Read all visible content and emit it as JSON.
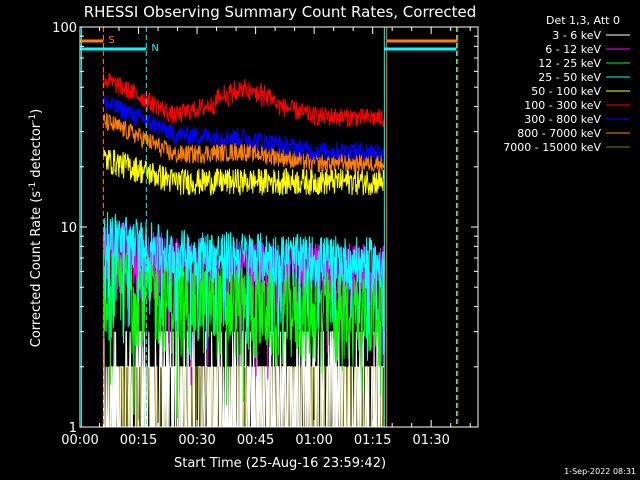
{
  "chart_data": {
    "type": "line",
    "title": "RHESSI Observing Summary Count Rates, Corrected",
    "xlabel": "Start Time (25-Aug-16 23:59:42)",
    "ylabel_main": "Corrected Count Rate (s",
    "ylabel_sup1": "-1",
    "ylabel_mid": " detector",
    "ylabel_sup2": "-1",
    "ylabel_end": ")",
    "y_scale": "log",
    "ylim": [
      1,
      100
    ],
    "xlim_minutes": [
      0,
      102
    ],
    "x_ticks": [
      {
        "value": 0,
        "label": "00:00"
      },
      {
        "value": 15,
        "label": "00:15"
      },
      {
        "value": 30,
        "label": "00:30"
      },
      {
        "value": 45,
        "label": "00:45"
      },
      {
        "value": 60,
        "label": "01:00"
      },
      {
        "value": 75,
        "label": "01:15"
      },
      {
        "value": 90,
        "label": "01:30"
      }
    ],
    "y_ticks": [
      {
        "value": 1,
        "label": "1"
      },
      {
        "value": 10,
        "label": "10"
      },
      {
        "value": 100,
        "label": "100"
      }
    ],
    "data_span_minutes": [
      6,
      78
    ],
    "legend_header": "Det 1,3, Att 0",
    "series": [
      {
        "name": "3 - 6 keV",
        "color": "#ffffff",
        "level": [
          2.0,
          2.0,
          2.0,
          2.0,
          2.0
        ],
        "noise": 0.35
      },
      {
        "name": "6 - 12 keV",
        "color": "#ff00ff",
        "level": [
          8.0,
          6.5,
          6.0,
          6.0,
          6.0
        ],
        "noise": 0.2
      },
      {
        "name": "12 - 25 keV",
        "color": "#00ff00",
        "level": [
          5.5,
          4.5,
          4.2,
          4.0,
          4.0
        ],
        "noise": 0.25
      },
      {
        "name": "25 - 50 keV",
        "color": "#00ffff",
        "level": [
          9.5,
          7.5,
          7.3,
          7.0,
          6.8
        ],
        "noise": 0.15
      },
      {
        "name": "50 - 100 keV",
        "color": "#ffff00",
        "level": [
          22,
          17,
          17,
          17,
          17
        ],
        "noise": 0.07
      },
      {
        "name": "100 - 300 keV",
        "color": "#ff0000",
        "level": [
          55,
          36,
          45,
          36,
          35
        ],
        "noise": 0.05
      },
      {
        "name": "300 - 800 keV",
        "color": "#0000ff",
        "level": [
          42,
          29,
          28,
          24,
          24
        ],
        "noise": 0.05
      },
      {
        "name": "800 - 7000 keV",
        "color": "#ff8000",
        "level": [
          34,
          23,
          24,
          21,
          21
        ],
        "noise": 0.05
      },
      {
        "name": "7000 - 15000 keV",
        "color": "#808000",
        "level": [
          2.0,
          2.0,
          2.0,
          2.0,
          2.0
        ],
        "noise": 0.0
      }
    ],
    "markers": [
      {
        "label": "S",
        "color": "#ff8000",
        "x": 6
      },
      {
        "label": "N",
        "color": "#00ffff",
        "x": 17
      }
    ],
    "night_start": 78,
    "saa_end": 96.5
  },
  "footer": {
    "timestamp": "1-Sep-2022 08:31"
  }
}
